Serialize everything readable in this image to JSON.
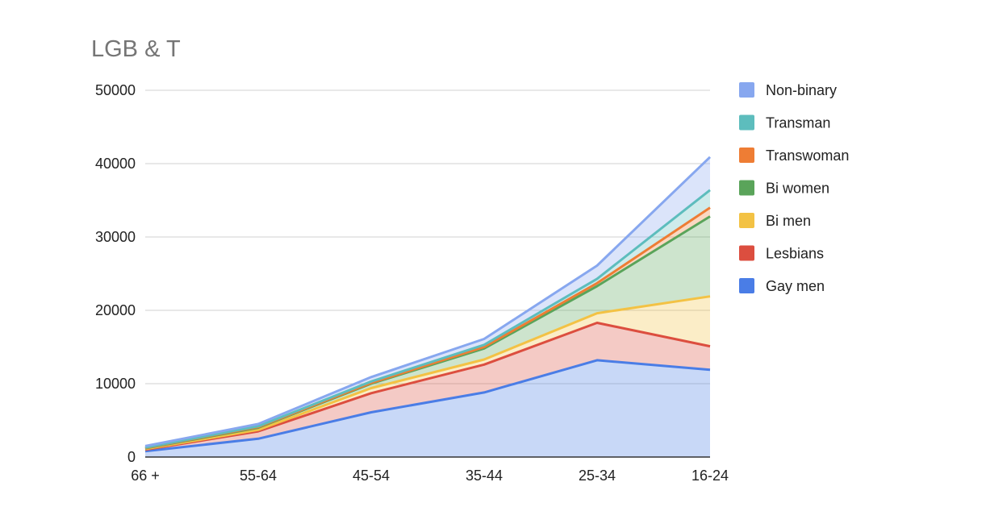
{
  "chart_data": {
    "type": "area",
    "stacked": true,
    "title": "LGB & T",
    "xlabel": "",
    "ylabel": "",
    "categories": [
      "66 +",
      "55-64",
      "45-54",
      "35-44",
      "25-34",
      "16-24"
    ],
    "ylim": [
      0,
      50000
    ],
    "yticks": [
      0,
      10000,
      20000,
      30000,
      40000,
      50000
    ],
    "grid": true,
    "legend_position": "right",
    "series": [
      {
        "name": "Gay men",
        "color": "#4a7de6",
        "values": [
          800,
          2500,
          6100,
          8800,
          13200,
          11900
        ]
      },
      {
        "name": "Lesbians",
        "color": "#dc4e3f",
        "values": [
          200,
          1000,
          2600,
          3800,
          5100,
          3200
        ]
      },
      {
        "name": "Bi men",
        "color": "#f3c244",
        "values": [
          100,
          200,
          700,
          700,
          1300,
          6800
        ]
      },
      {
        "name": "Bi women",
        "color": "#5aa45a",
        "values": [
          100,
          300,
          600,
          1500,
          3700,
          10900
        ]
      },
      {
        "name": "Transwoman",
        "color": "#ee7d34",
        "values": [
          50,
          100,
          100,
          200,
          400,
          1200
        ]
      },
      {
        "name": "Transman",
        "color": "#5dbdbd",
        "values": [
          50,
          100,
          200,
          300,
          600,
          2400
        ]
      },
      {
        "name": "Non-binary",
        "color": "#87a7ef",
        "values": [
          200,
          300,
          600,
          800,
          1800,
          4500
        ]
      }
    ]
  }
}
